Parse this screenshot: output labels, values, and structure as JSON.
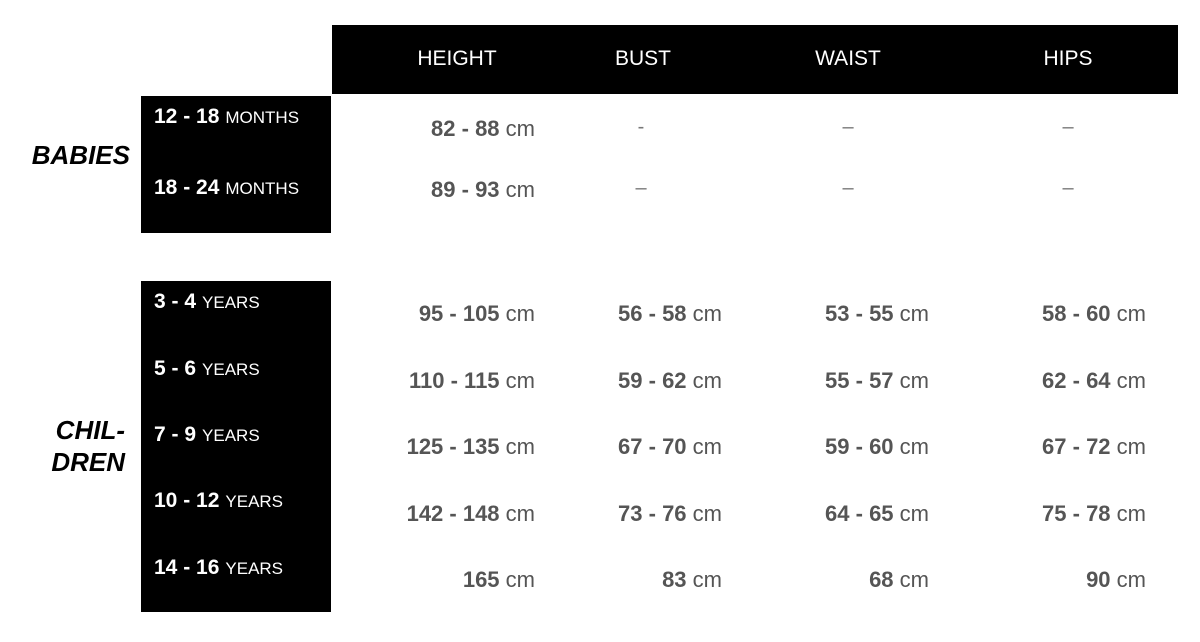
{
  "columns": [
    "HEIGHT",
    "BUST",
    "WAIST",
    "HIPS"
  ],
  "unit": "cm",
  "groups": [
    {
      "name": "BABIES",
      "rows": [
        {
          "range": "12 - 18",
          "period": "MONTHS",
          "values": [
            "82 - 88",
            "-",
            "–",
            "–"
          ]
        },
        {
          "range": "18 - 24",
          "period": "MONTHS",
          "values": [
            "89 - 93",
            "–",
            "–",
            "–"
          ]
        }
      ]
    },
    {
      "name_line1": "CHIL-",
      "name_line2": "DREN",
      "rows": [
        {
          "range": "3 - 4",
          "period": "YEARS",
          "values": [
            "95 - 105",
            "56 - 58",
            "53 - 55",
            "58 - 60"
          ]
        },
        {
          "range": "5 - 6",
          "period": "YEARS",
          "values": [
            "110 - 115",
            "59 - 62",
            "55 - 57",
            "62 - 64"
          ]
        },
        {
          "range": "7 - 9",
          "period": "YEARS",
          "values": [
            "125 - 135",
            "67 - 70",
            "59 - 60",
            "67 - 72"
          ]
        },
        {
          "range": "10 - 12",
          "period": "YEARS",
          "values": [
            "142 - 148",
            "73 - 76",
            "64 - 65",
            "75 - 78"
          ]
        },
        {
          "range": "14 - 16",
          "period": "YEARS",
          "values": [
            "165",
            "83",
            "68",
            "90"
          ]
        }
      ]
    }
  ]
}
